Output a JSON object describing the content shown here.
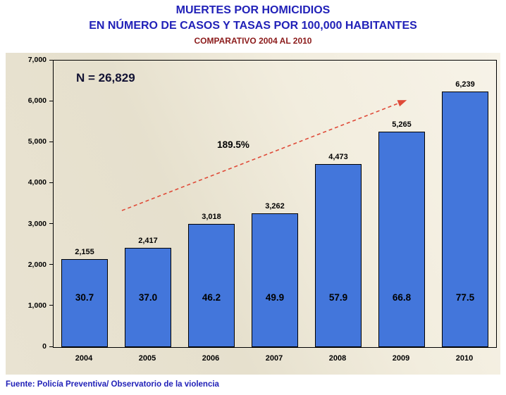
{
  "header": {
    "title": "MUERTES POR HOMICIDIOS",
    "subtitle": "EN NÚMERO DE CASOS Y TASAS POR 100,000 HABITANTES",
    "comparative": "COMPARATIVO 2004 AL 2010"
  },
  "chart_data": {
    "type": "bar",
    "title": "MUERTES POR HOMICIDIOS EN NÚMERO DE CASOS Y TASAS POR 100,000 HABITANTES",
    "subtitle": "COMPARATIVO 2004 AL 2010",
    "categories": [
      "2004",
      "2005",
      "2006",
      "2007",
      "2008",
      "2009",
      "2010"
    ],
    "series": [
      {
        "name": "Número de casos",
        "values": [
          2155,
          2417,
          3018,
          3262,
          4473,
          5265,
          6239
        ],
        "labels": [
          "2,155",
          "2,417",
          "3,018",
          "3,262",
          "4,473",
          "5,265",
          "6,239"
        ]
      },
      {
        "name": "Tasa por 100,000 habitantes",
        "values": [
          30.7,
          37.0,
          46.2,
          49.9,
          57.9,
          66.8,
          77.5
        ],
        "labels": [
          "30.7",
          "37.0",
          "46.2",
          "49.9",
          "57.9",
          "66.8",
          "77.5"
        ]
      }
    ],
    "annotations": {
      "n_total": "N = 26,829",
      "growth": "189.5%"
    },
    "ylim": [
      0,
      7000
    ],
    "ytick_interval": 1000,
    "ytick_values": [
      0,
      1000,
      2000,
      3000,
      4000,
      5000,
      6000,
      7000
    ],
    "ytick_labels": [
      "0",
      "1,000",
      "2,000",
      "3,000",
      "4,000",
      "5,000",
      "6,000",
      "7,000"
    ],
    "grid": false,
    "legend": "none",
    "bar_color": "#4376db",
    "bar_border_color": "#000000",
    "arrow_color": "#df4a38",
    "plot_background": "#ece7d8",
    "title_color": "#2121b8",
    "comparative_color": "#8b1a1a"
  },
  "footer": {
    "source": "Fuente: Policía Preventiva/ Observatorio de la violencia"
  }
}
